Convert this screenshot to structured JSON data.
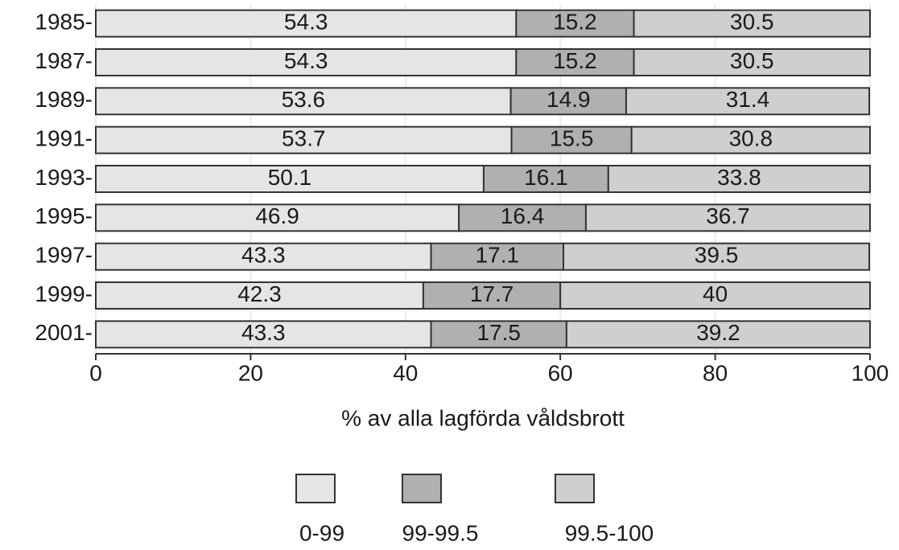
{
  "chart_data": {
    "type": "stacked_bar_horizontal",
    "x_label": "% av alla lagförda våldsbrott",
    "categories": [
      "1985-",
      "1987-",
      "1989-",
      "1991-",
      "1993-",
      "1995-",
      "1997-",
      "1999-",
      "2001-"
    ],
    "series": [
      {
        "name": "0-99",
        "color": "#e5e5e5",
        "values": [
          54.3,
          54.3,
          53.6,
          53.7,
          50.1,
          46.9,
          43.3,
          42.3,
          43.3
        ]
      },
      {
        "name": "99-99.5",
        "color": "#b0b0b0",
        "values": [
          15.2,
          15.2,
          14.9,
          15.5,
          16.1,
          16.4,
          17.1,
          17.7,
          17.5
        ]
      },
      {
        "name": "99.5-100",
        "color": "#cfcfcf",
        "values": [
          30.5,
          30.5,
          31.4,
          30.8,
          33.8,
          36.7,
          39.5,
          40,
          39.2
        ]
      }
    ],
    "xlim": [
      0,
      100
    ],
    "xticks": [
      0,
      20,
      40,
      60,
      80,
      100
    ],
    "grid": true,
    "legend": "bottom"
  }
}
